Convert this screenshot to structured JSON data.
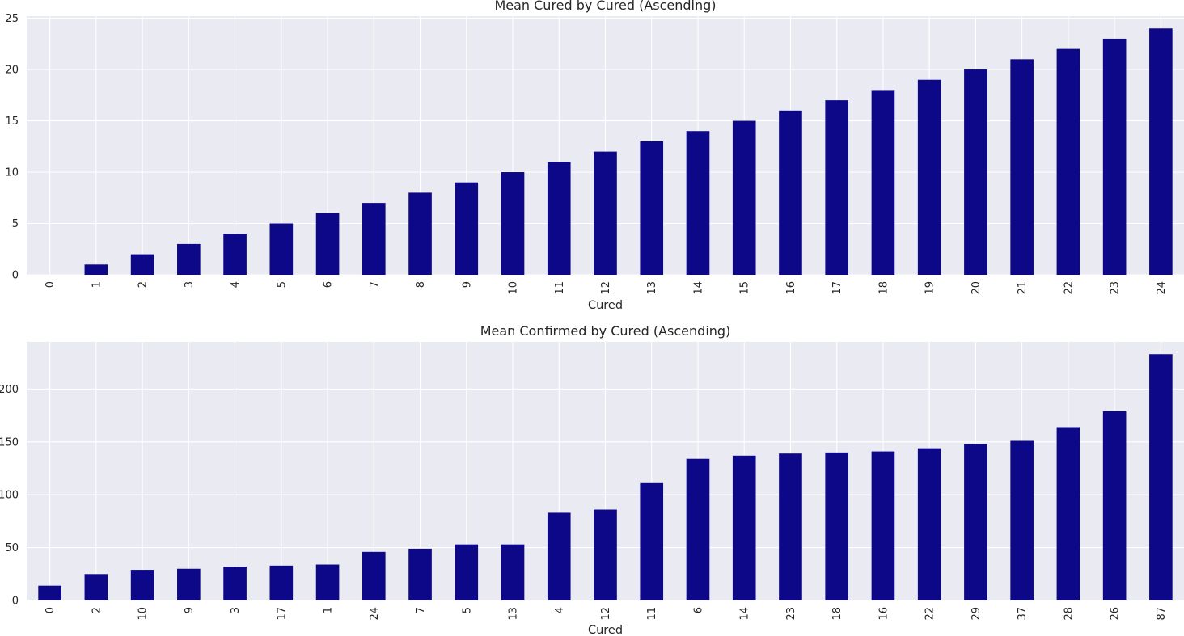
{
  "chart_data": [
    {
      "type": "bar",
      "title": "Mean Cured by Cured (Ascending)",
      "xlabel": "Cured",
      "ylabel": "",
      "categories": [
        "0",
        "1",
        "2",
        "3",
        "4",
        "5",
        "6",
        "7",
        "8",
        "9",
        "10",
        "11",
        "12",
        "13",
        "14",
        "15",
        "16",
        "17",
        "18",
        "19",
        "20",
        "21",
        "22",
        "23",
        "24"
      ],
      "values": [
        0,
        1,
        2,
        3,
        4,
        5,
        6,
        7,
        8,
        9,
        10,
        11,
        12,
        13,
        14,
        15,
        16,
        17,
        18,
        19,
        20,
        21,
        22,
        23,
        24
      ],
      "ylim": [
        0,
        25.2
      ],
      "yticks": [
        0,
        5,
        10,
        15,
        20,
        25
      ],
      "grid": true,
      "legend": "none",
      "bar_color": "#0d0887"
    },
    {
      "type": "bar",
      "title": "Mean Confirmed by Cured (Ascending)",
      "xlabel": "Cured",
      "ylabel": "",
      "categories": [
        "0",
        "2",
        "10",
        "9",
        "3",
        "17",
        "1",
        "24",
        "7",
        "5",
        "13",
        "4",
        "12",
        "11",
        "6",
        "14",
        "23",
        "18",
        "16",
        "22",
        "29",
        "37",
        "28",
        "26",
        "87"
      ],
      "values": [
        14,
        25,
        29,
        30,
        32,
        33,
        34,
        46,
        49,
        53,
        53,
        83,
        86,
        111,
        134,
        137,
        139,
        140,
        141,
        144,
        148,
        151,
        164,
        179,
        233
      ],
      "ylim": [
        0,
        244.65
      ],
      "yticks": [
        0,
        50,
        100,
        150,
        200
      ],
      "grid": true,
      "legend": "none",
      "bar_color": "#0d0887"
    }
  ]
}
